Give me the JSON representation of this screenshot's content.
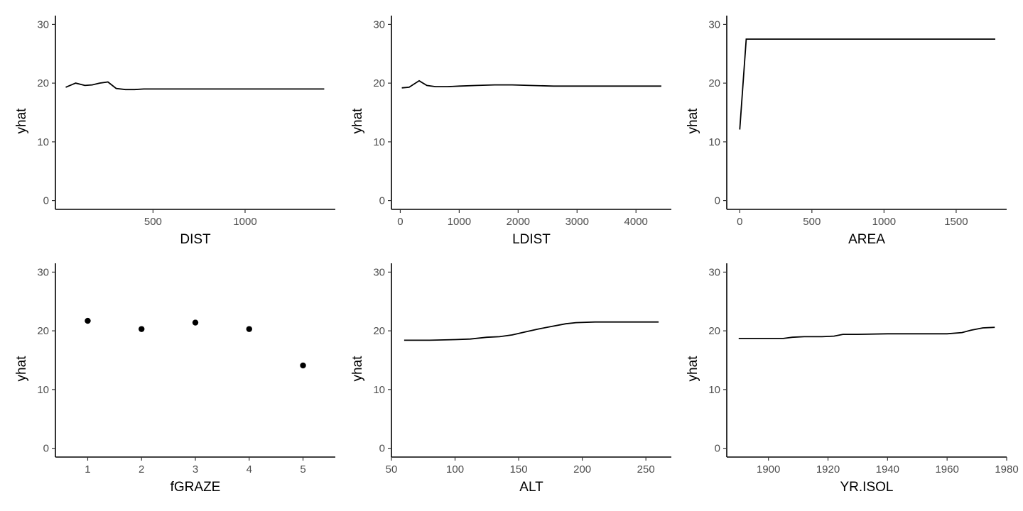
{
  "chart_data": [
    {
      "type": "line",
      "xlabel": "DIST",
      "ylabel": "yhat",
      "xlim": [
        -30,
        1490
      ],
      "ylim": [
        -1.5,
        31.5
      ],
      "x_ticks": [
        500,
        1000
      ],
      "y_ticks": [
        0,
        10,
        20,
        30
      ],
      "grid": false,
      "series": [
        {
          "x": [
            26,
            80,
            130,
            170,
            210,
            255,
            300,
            350,
            400,
            450,
            520,
            600,
            800,
            1000,
            1200,
            1430
          ],
          "y": [
            19.3,
            20.0,
            19.6,
            19.7,
            20.0,
            20.2,
            19.1,
            18.9,
            18.9,
            19.0,
            19.0,
            19.0,
            19.0,
            19.0,
            19.0,
            19.0
          ]
        }
      ]
    },
    {
      "type": "line",
      "xlabel": "LDIST",
      "ylabel": "yhat",
      "xlim": [
        -150,
        4600
      ],
      "ylim": [
        -1.5,
        31.5
      ],
      "x_ticks": [
        0,
        1000,
        2000,
        3000,
        4000
      ],
      "y_ticks": [
        0,
        10,
        20,
        30
      ],
      "grid": false,
      "series": [
        {
          "x": [
            26,
            150,
            320,
            450,
            600,
            800,
            1000,
            1300,
            1600,
            1900,
            2200,
            2600,
            3000,
            3500,
            4000,
            4430
          ],
          "y": [
            19.2,
            19.3,
            20.4,
            19.6,
            19.4,
            19.4,
            19.5,
            19.6,
            19.7,
            19.7,
            19.6,
            19.5,
            19.5,
            19.5,
            19.5,
            19.5
          ]
        }
      ]
    },
    {
      "type": "line",
      "xlabel": "AREA",
      "ylabel": "yhat",
      "xlim": [
        -90,
        1850
      ],
      "ylim": [
        -1.5,
        31.5
      ],
      "x_ticks": [
        0,
        500,
        1000,
        1500
      ],
      "y_ticks": [
        0,
        10,
        20,
        30
      ],
      "grid": false,
      "series": [
        {
          "x": [
            0.08,
            45,
            100,
            500,
            1000,
            1500,
            1771
          ],
          "y": [
            12.1,
            27.5,
            27.5,
            27.5,
            27.5,
            27.5,
            27.5
          ]
        }
      ]
    },
    {
      "type": "scatter",
      "xlabel": "fGRAZE",
      "ylabel": "yhat",
      "xlim": [
        0.4,
        5.6
      ],
      "ylim": [
        -1.5,
        31.5
      ],
      "x_ticks": [
        1,
        2,
        3,
        4,
        5
      ],
      "y_ticks": [
        0,
        10,
        20,
        30
      ],
      "grid": false,
      "series": [
        {
          "x": [
            1,
            2,
            3,
            4,
            5
          ],
          "y": [
            21.7,
            20.3,
            21.4,
            20.3,
            14.1
          ]
        }
      ]
    },
    {
      "type": "line",
      "xlabel": "ALT",
      "ylabel": "yhat",
      "xlim": [
        50,
        270
      ],
      "ylim": [
        -1.5,
        31.5
      ],
      "x_ticks": [
        50,
        100,
        150,
        200,
        250
      ],
      "y_ticks": [
        0,
        10,
        20,
        30
      ],
      "grid": false,
      "series": [
        {
          "x": [
            60,
            80,
            100,
            112,
            125,
            135,
            145,
            155,
            165,
            175,
            187,
            195,
            210,
            230,
            260
          ],
          "y": [
            18.4,
            18.4,
            18.5,
            18.6,
            18.9,
            19.0,
            19.3,
            19.8,
            20.3,
            20.7,
            21.2,
            21.4,
            21.5,
            21.5,
            21.5
          ]
        }
      ]
    },
    {
      "type": "line",
      "xlabel": "YR.ISOL",
      "ylabel": "yhat",
      "xlim": [
        1886,
        1980
      ],
      "ylim": [
        -1.5,
        31.5
      ],
      "x_ticks": [
        1900,
        1920,
        1940,
        1960,
        1980
      ],
      "y_ticks": [
        0,
        10,
        20,
        30
      ],
      "grid": false,
      "series": [
        {
          "x": [
            1890,
            1895,
            1900,
            1905,
            1908,
            1912,
            1918,
            1922,
            1925,
            1930,
            1940,
            1950,
            1960,
            1965,
            1968,
            1972,
            1976
          ],
          "y": [
            18.7,
            18.7,
            18.7,
            18.7,
            18.9,
            19.0,
            19.0,
            19.1,
            19.4,
            19.4,
            19.5,
            19.5,
            19.5,
            19.7,
            20.1,
            20.5,
            20.6
          ]
        }
      ]
    }
  ]
}
